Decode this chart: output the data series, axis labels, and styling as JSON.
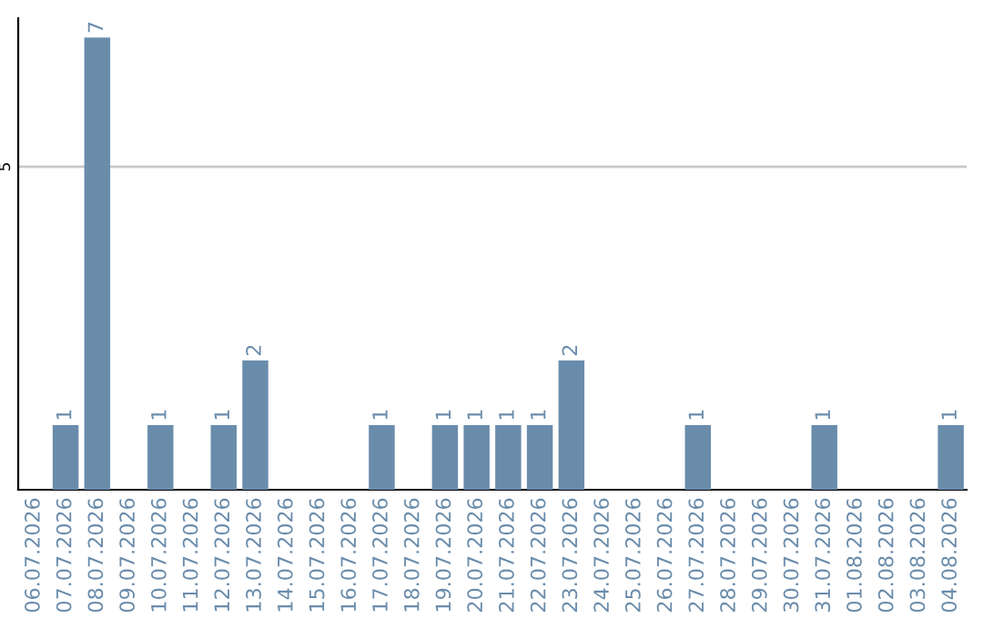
{
  "chart_data": {
    "type": "bar",
    "categories": [
      "06.07.2026",
      "07.07.2026",
      "08.07.2026",
      "09.07.2026",
      "10.07.2026",
      "11.07.2026",
      "12.07.2026",
      "13.07.2026",
      "14.07.2026",
      "15.07.2026",
      "16.07.2026",
      "17.07.2026",
      "18.07.2026",
      "19.07.2026",
      "20.07.2026",
      "21.07.2026",
      "22.07.2026",
      "23.07.2026",
      "24.07.2026",
      "25.07.2026",
      "26.07.2026",
      "27.07.2026",
      "28.07.2026",
      "29.07.2026",
      "30.07.2026",
      "31.07.2026",
      "01.08.2026",
      "02.08.2026",
      "03.08.2026",
      "04.08.2026"
    ],
    "values": [
      0,
      1,
      7,
      0,
      1,
      0,
      1,
      2,
      0,
      0,
      0,
      1,
      0,
      1,
      1,
      1,
      1,
      2,
      0,
      0,
      0,
      1,
      0,
      0,
      0,
      1,
      0,
      0,
      0,
      1
    ],
    "value_labels": [
      null,
      "1",
      "7",
      null,
      "1",
      null,
      "1",
      "2",
      null,
      null,
      null,
      "1",
      null,
      "1",
      "1",
      "1",
      "1",
      "2",
      null,
      null,
      null,
      "1",
      null,
      null,
      null,
      "1",
      null,
      null,
      null,
      "1"
    ],
    "color": "#6a8cab",
    "ylim": [
      0,
      7.3
    ],
    "yticks": [
      5
    ],
    "grid": "y",
    "legend": false
  }
}
